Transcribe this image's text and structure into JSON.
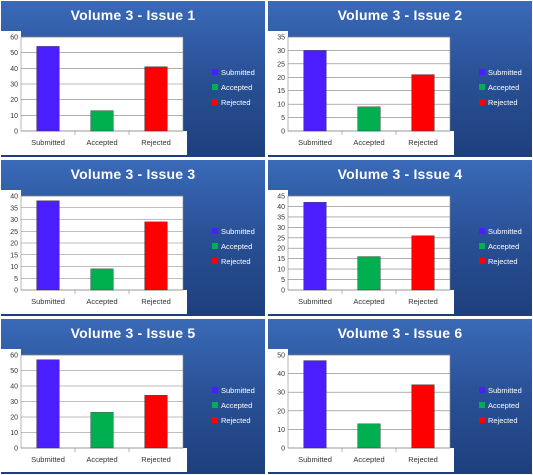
{
  "colors": {
    "submitted": "#4a1eff",
    "accepted": "#00b050",
    "rejected": "#ff0000"
  },
  "chart_data": [
    {
      "type": "bar",
      "title": "Volume 3 - Issue 1",
      "categories": [
        "Submitted",
        "Accepted",
        "Rejected"
      ],
      "values": [
        54,
        13,
        41
      ],
      "ylim": [
        0,
        60
      ],
      "yticks": [
        0,
        10,
        20,
        30,
        40,
        50,
        60
      ],
      "legend": [
        "Submitted",
        "Accepted",
        "Rejected"
      ],
      "legend_position": "right",
      "grid": true
    },
    {
      "type": "bar",
      "title": "Volume 3 - Issue 2",
      "categories": [
        "Submitted",
        "Accepted",
        "Rejected"
      ],
      "values": [
        30,
        9,
        21
      ],
      "ylim": [
        0,
        35
      ],
      "yticks": [
        0,
        5,
        10,
        15,
        20,
        25,
        30,
        35
      ],
      "legend": [
        "Submitted",
        "Accepted",
        "Rejected"
      ],
      "legend_position": "right",
      "grid": true
    },
    {
      "type": "bar",
      "title": "Volume 3 - Issue 3",
      "categories": [
        "Submitted",
        "Accepted",
        "Rejected"
      ],
      "values": [
        38,
        9,
        29
      ],
      "ylim": [
        0,
        40
      ],
      "yticks": [
        0,
        5,
        10,
        15,
        20,
        25,
        30,
        35,
        40
      ],
      "legend": [
        "Submitted",
        "Accepted",
        "Rejected"
      ],
      "legend_position": "right",
      "grid": true
    },
    {
      "type": "bar",
      "title": "Volume 3 - Issue 4",
      "categories": [
        "Submitted",
        "Accepted",
        "Rejected"
      ],
      "values": [
        42,
        16,
        26
      ],
      "ylim": [
        0,
        45
      ],
      "yticks": [
        0,
        5,
        10,
        15,
        20,
        25,
        30,
        35,
        40,
        45
      ],
      "legend": [
        "Submitted",
        "Accepted",
        "Rejected"
      ],
      "legend_position": "right",
      "grid": true
    },
    {
      "type": "bar",
      "title": "Volume 3 - Issue 5",
      "categories": [
        "Submitted",
        "Accepted",
        "Rejected"
      ],
      "values": [
        57,
        23,
        34
      ],
      "ylim": [
        0,
        60
      ],
      "yticks": [
        0,
        10,
        20,
        30,
        40,
        50,
        60
      ],
      "legend": [
        "Submitted",
        "Accepted",
        "Rejected"
      ],
      "legend_position": "right",
      "grid": true
    },
    {
      "type": "bar",
      "title": "Volume 3 - Issue 6",
      "categories": [
        "Submitted",
        "Accepted",
        "Rejected"
      ],
      "values": [
        47,
        13,
        34
      ],
      "ylim": [
        0,
        50
      ],
      "yticks": [
        0,
        10,
        20,
        30,
        40,
        50
      ],
      "legend": [
        "Submitted",
        "Accepted",
        "Rejected"
      ],
      "legend_position": "right",
      "grid": true
    }
  ]
}
